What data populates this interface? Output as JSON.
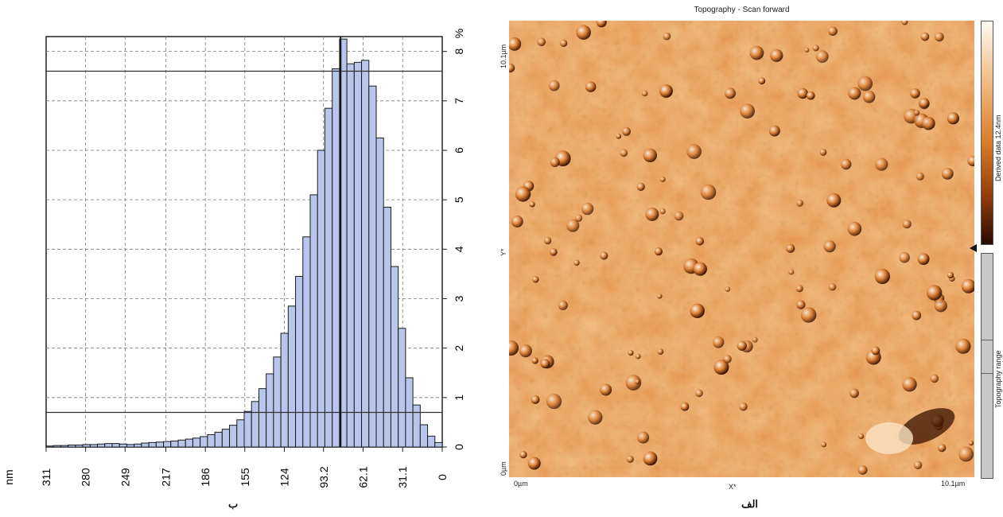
{
  "histogram": {
    "chart_data": {
      "type": "bar",
      "orientation": "rotated",
      "x_tick_labels": [
        "311",
        "280",
        "249",
        "217",
        "186",
        "155",
        "124",
        "93.2",
        "62.1",
        "31.1",
        "0"
      ],
      "x_unit": "nm",
      "y_unit": "%",
      "y_tick_labels": [
        "0",
        "1",
        "2",
        "3",
        "4",
        "5",
        "6",
        "7",
        "8"
      ],
      "xlim": [
        311,
        0
      ],
      "ylim": [
        0,
        8.3
      ],
      "grid": true,
      "bins_values": [
        0.02,
        0.03,
        0.03,
        0.04,
        0.04,
        0.05,
        0.05,
        0.06,
        0.07,
        0.07,
        0.06,
        0.05,
        0.06,
        0.08,
        0.09,
        0.1,
        0.11,
        0.12,
        0.14,
        0.16,
        0.18,
        0.21,
        0.25,
        0.3,
        0.36,
        0.44,
        0.55,
        0.72,
        0.92,
        1.18,
        1.48,
        1.82,
        2.3,
        2.85,
        3.45,
        4.25,
        5.1,
        6.0,
        6.85,
        7.65,
        8.25,
        7.75,
        7.78,
        7.82,
        7.3,
        6.25,
        4.85,
        3.65,
        2.4,
        1.4,
        0.85,
        0.45,
        0.22,
        0.09
      ],
      "reference_lines": [
        7.6,
        0.7
      ],
      "marker_line_x": 79.8
    },
    "caption": "ب"
  },
  "afm": {
    "title": "Topography - Scan forward",
    "y_top_label": "10.1µm",
    "y_bottom_label": "0µm",
    "y_axis_label": "Y*",
    "x_left_label": "0µm",
    "x_right_label": "10.1µm",
    "x_axis_label": "X*",
    "colorbar_label": "Derived data 12.4nm",
    "range_label": "Topography range",
    "caption": "الف",
    "colors": {
      "light": "#fbe4c6",
      "mid": "#e38a3c",
      "dark": "#8a3a0a"
    }
  }
}
